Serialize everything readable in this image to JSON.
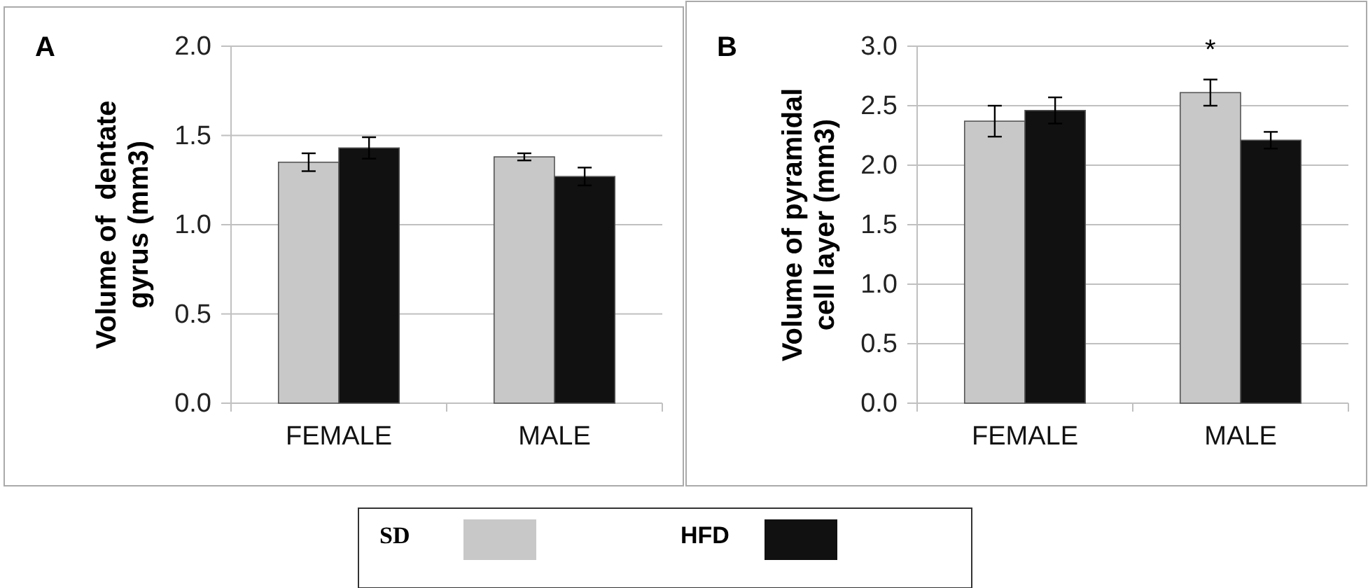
{
  "chart_data": [
    {
      "type": "bar",
      "title": "A",
      "ylabel": "Volume of  dentate\ngyrus (mm3)",
      "categories": [
        "FEMALE",
        "MALE"
      ],
      "series": [
        {
          "name": "SD",
          "color": "#c8c8c8",
          "values": [
            1.35,
            1.38
          ],
          "errors": [
            0.05,
            0.02
          ]
        },
        {
          "name": "HFD",
          "color": "#111111",
          "values": [
            1.43,
            1.27
          ],
          "errors": [
            0.06,
            0.05
          ]
        }
      ],
      "ylim": [
        0,
        2
      ],
      "yticks": [
        {
          "value": 0,
          "label": "0.0"
        },
        {
          "value": 0.5,
          "label": "0.5"
        },
        {
          "value": 1,
          "label": "1.0"
        },
        {
          "value": 1.5,
          "label": "1.5"
        },
        {
          "value": 2,
          "label": "2.0"
        }
      ],
      "grid": "y",
      "legend": "bottom"
    },
    {
      "type": "bar",
      "title": "B",
      "ylabel": "Volume of pyramidal\ncell layer (mm3)",
      "categories": [
        "FEMALE",
        "MALE"
      ],
      "series": [
        {
          "color": "#c8c8c8",
          "values": [
            2.37,
            2.61
          ],
          "errors": [
            0.13,
            0.11
          ]
        },
        {
          "color": "#111111",
          "values": [
            2.46,
            2.21
          ],
          "errors": [
            0.11,
            0.07
          ]
        }
      ],
      "ylim": [
        0,
        3
      ],
      "yticks": [
        {
          "value": 0,
          "label": "0.0"
        },
        {
          "value": 0.5,
          "label": "0.5"
        },
        {
          "value": 1,
          "label": "1.0"
        },
        {
          "value": 1.5,
          "label": "1.5"
        },
        {
          "value": 2,
          "label": "2.0"
        },
        {
          "value": 2.5,
          "label": "2.5"
        },
        {
          "value": 3,
          "label": "3.0"
        }
      ],
      "grid": "y",
      "annotations": [
        {
          "text": "*",
          "x": "MALE",
          "y": 2.61
        }
      ]
    }
  ]
}
